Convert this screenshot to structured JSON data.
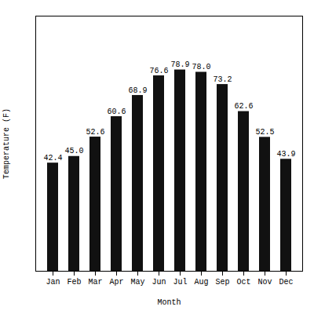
{
  "chart_data": {
    "type": "bar",
    "categories": [
      "Jan",
      "Feb",
      "Mar",
      "Apr",
      "May",
      "Jun",
      "Jul",
      "Aug",
      "Sep",
      "Oct",
      "Nov",
      "Dec"
    ],
    "values": [
      42.4,
      45.0,
      52.6,
      60.6,
      68.9,
      76.6,
      78.9,
      78.0,
      73.2,
      62.6,
      52.5,
      43.9
    ],
    "value_labels": [
      "42.4",
      "45.0",
      "52.6",
      "60.6",
      "68.9",
      "76.6",
      "78.9",
      "78.0",
      "73.2",
      "62.6",
      "52.5",
      "43.9"
    ],
    "color": "#111111",
    "xlabel": "Month",
    "ylabel": "Temperature (F)",
    "ylim": [
      0,
      100
    ],
    "data_labels": true,
    "tick_labels": "x",
    "grid": false
  }
}
